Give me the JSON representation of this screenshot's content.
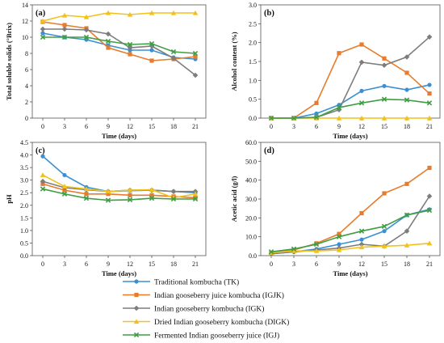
{
  "chart_data": [
    {
      "type": "line",
      "panel_label": "(a)",
      "xlabel": "Time (days)",
      "ylabel": "Total soluble solids (°Brix)",
      "x": [
        0,
        3,
        6,
        9,
        12,
        15,
        18,
        21
      ],
      "x_ticks": [
        "0",
        "3",
        "6",
        "9",
        "12",
        "15",
        "18",
        "21"
      ],
      "ylim": [
        0,
        14
      ],
      "y_ticks": [
        "0",
        "2",
        "4",
        "6",
        "8",
        "10",
        "12",
        "14"
      ],
      "series": [
        {
          "name": "Traditional kombucha (TK)",
          "values": [
            10.5,
            10.0,
            9.7,
            9.0,
            8.4,
            8.4,
            7.5,
            7.3
          ]
        },
        {
          "name": "Indian gooseberry juice kombucha (IGJK)",
          "values": [
            11.9,
            11.5,
            11.1,
            8.7,
            7.9,
            7.1,
            7.3,
            7.6
          ]
        },
        {
          "name": "Indian gooseberry kombucha (IGK)",
          "values": [
            11.0,
            11.0,
            10.9,
            10.4,
            8.7,
            8.9,
            7.4,
            5.3
          ]
        },
        {
          "name": "Dried Indian gooseberry kombucha (DIGK)",
          "values": [
            12.0,
            12.7,
            12.5,
            13.0,
            12.8,
            13.0,
            13.0,
            13.0
          ]
        },
        {
          "name": "Fermented Indian gooseberry juice (IGJ)",
          "values": [
            10.0,
            10.0,
            10.0,
            9.5,
            9.1,
            9.2,
            8.2,
            8.0
          ]
        }
      ]
    },
    {
      "type": "line",
      "panel_label": "(b)",
      "xlabel": "Time (days)",
      "ylabel": "Alcohol content (%)",
      "x": [
        0,
        3,
        6,
        9,
        12,
        15,
        18,
        21
      ],
      "x_ticks": [
        "0",
        "3",
        "6",
        "9",
        "12",
        "15",
        "18",
        "21"
      ],
      "ylim": [
        0,
        3
      ],
      "y_ticks": [
        "0.0",
        "0.5",
        "1.0",
        "1.5",
        "2.0",
        "2.5",
        "3.0"
      ],
      "series": [
        {
          "name": "Traditional kombucha (TK)",
          "values": [
            0,
            0,
            0.12,
            0.35,
            0.72,
            0.85,
            0.75,
            0.88
          ]
        },
        {
          "name": "Indian gooseberry juice kombucha (IGJK)",
          "values": [
            0,
            0,
            0.4,
            1.72,
            1.95,
            1.58,
            1.2,
            0.65
          ]
        },
        {
          "name": "Indian gooseberry kombucha (IGK)",
          "values": [
            0,
            0,
            0.02,
            0.22,
            1.48,
            1.4,
            1.62,
            2.15
          ]
        },
        {
          "name": "Dried Indian gooseberry kombucha (DIGK)",
          "values": [
            0,
            0,
            0,
            0,
            0,
            0,
            0,
            0
          ]
        },
        {
          "name": "Fermented Indian gooseberry juice (IGJ)",
          "values": [
            0,
            0,
            0.02,
            0.28,
            0.4,
            0.5,
            0.48,
            0.4
          ]
        }
      ]
    },
    {
      "type": "line",
      "panel_label": "(c)",
      "xlabel": "Time (days)",
      "ylabel": "pH",
      "x": [
        0,
        3,
        6,
        9,
        12,
        15,
        18,
        21
      ],
      "x_ticks": [
        "0",
        "3",
        "6",
        "9",
        "12",
        "15",
        "18",
        "21"
      ],
      "ylim": [
        0,
        4.5
      ],
      "y_ticks": [
        "0.0",
        "0.5",
        "1.0",
        "1.5",
        "2.0",
        "2.5",
        "3.0",
        "3.5",
        "4.0",
        "4.5"
      ],
      "series": [
        {
          "name": "Traditional kombucha (TK)",
          "values": [
            3.95,
            3.2,
            2.72,
            2.55,
            2.58,
            2.6,
            2.55,
            2.5
          ]
        },
        {
          "name": "Indian gooseberry juice kombucha (IGJK)",
          "values": [
            2.85,
            2.6,
            2.45,
            2.45,
            2.4,
            2.4,
            2.35,
            2.3
          ]
        },
        {
          "name": "Indian gooseberry kombucha (IGK)",
          "values": [
            2.95,
            2.7,
            2.62,
            2.55,
            2.6,
            2.6,
            2.55,
            2.55
          ]
        },
        {
          "name": "Dried Indian gooseberry kombucha (DIGK)",
          "values": [
            3.2,
            2.75,
            2.65,
            2.55,
            2.6,
            2.62,
            2.3,
            2.45
          ]
        },
        {
          "name": "Fermented Indian gooseberry juice (IGJ)",
          "values": [
            2.65,
            2.45,
            2.28,
            2.2,
            2.22,
            2.28,
            2.25,
            2.25
          ]
        }
      ]
    },
    {
      "type": "line",
      "panel_label": "(d)",
      "xlabel": "Time (days)",
      "ylabel": "Acetic acid (g/l)",
      "x": [
        0,
        3,
        6,
        9,
        12,
        15,
        18,
        21
      ],
      "x_ticks": [
        "0",
        "3",
        "6",
        "9",
        "12",
        "15",
        "18",
        "21"
      ],
      "ylim": [
        0,
        60
      ],
      "y_ticks": [
        "0.0",
        "10.0",
        "20.0",
        "30.0",
        "40.0",
        "50.0",
        "60.0"
      ],
      "series": [
        {
          "name": "Traditional kombucha (TK)",
          "values": [
            1.0,
            2.0,
            3.5,
            6.0,
            8.5,
            13.0,
            21.5,
            24.5
          ]
        },
        {
          "name": "Indian gooseberry juice kombucha (IGJK)",
          "values": [
            1.5,
            3.0,
            6.5,
            11.5,
            22.5,
            33.0,
            38.0,
            46.5
          ]
        },
        {
          "name": "Indian gooseberry kombucha (IGK)",
          "values": [
            1.0,
            2.0,
            3.0,
            4.0,
            6.0,
            5.0,
            13.0,
            31.5
          ]
        },
        {
          "name": "Dried Indian gooseberry kombucha (DIGK)",
          "values": [
            1.5,
            2.5,
            2.5,
            3.0,
            4.5,
            5.0,
            5.5,
            6.5
          ]
        },
        {
          "name": "Fermented Indian gooseberry juice (IGJ)",
          "values": [
            2.0,
            3.5,
            6.0,
            10.0,
            13.0,
            15.5,
            21.5,
            24.0
          ]
        }
      ]
    }
  ],
  "legend": [
    {
      "label": "Traditional kombucha (TK)",
      "color": "#3b8fd3",
      "marker": "circle"
    },
    {
      "label": "Indian gooseberry juice kombucha (IGJK)",
      "color": "#e87c2c",
      "marker": "square"
    },
    {
      "label": "Indian gooseberry kombucha (IGK)",
      "color": "#7d7d7d",
      "marker": "diamond"
    },
    {
      "label": "Dried Indian gooseberry kombucha (DIGK)",
      "color": "#f2c21a",
      "marker": "triangle"
    },
    {
      "label": "Fermented Indian gooseberry juice  (IGJ)",
      "color": "#3f9e44",
      "marker": "x"
    }
  ],
  "colors": [
    "#3b8fd3",
    "#e87c2c",
    "#7d7d7d",
    "#f2c21a",
    "#3f9e44"
  ],
  "markers": [
    "circle",
    "square",
    "diamond",
    "triangle",
    "x"
  ]
}
